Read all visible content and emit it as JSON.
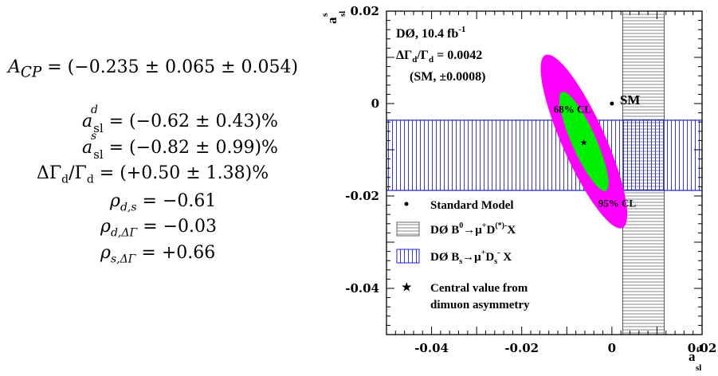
{
  "equations": [
    {
      "lhs": "A",
      "lhs_sub": "CP",
      "rhs": "= (−0.235 ± 0.065 ± 0.054)"
    },
    {
      "lhs": "a",
      "lhs_sup": "d",
      "lhs_sub": "sl",
      "rhs": "= (−0.62 ± 0.43)%"
    },
    {
      "lhs": "a",
      "lhs_sup": "s",
      "lhs_sub": "sl",
      "rhs": "= (−0.82 ± 0.99)%"
    },
    {
      "lhs": "ΔΓ",
      "lhs_sub": "d",
      "lhs_mid": "/Γ",
      "lhs_sub2": "d",
      "rhs": "= (+0.50 ± 1.38)%"
    },
    {
      "lhs": "ρ",
      "lhs_sub": "d,s",
      "rhs": "= −0.61"
    },
    {
      "lhs": "ρ",
      "lhs_sub": "d,ΔΓ",
      "rhs": "= −0.03"
    },
    {
      "lhs": "ρ",
      "lhs_sub": "s,ΔΓ",
      "rhs": "= +0.66"
    }
  ],
  "chart_data": {
    "type": "contour",
    "xlabel": "a",
    "xlabel_sup": "d",
    "xlabel_sub": "sl",
    "ylabel": "a",
    "ylabel_sup": "s",
    "ylabel_sub": "sl",
    "xlim": [
      -0.05,
      0.02
    ],
    "ylim": [
      -0.05,
      0.02
    ],
    "x_ticks": [
      -0.04,
      -0.02,
      0,
      0.02
    ],
    "x_tick_labels": [
      "-0.04",
      "-0.02",
      "0",
      "0.02"
    ],
    "y_ticks": [
      -0.04,
      -0.02,
      0,
      0.02
    ],
    "y_tick_labels": [
      "-0.04",
      "-0.02",
      "0",
      "0.02"
    ],
    "header": {
      "line1": "DØ, 10.4 fb",
      "line1_sup": "-1",
      "line2": "ΔΓ",
      "line2_sub": "d",
      "line2_mid": "/Γ",
      "line2_sub2": "d",
      "line2_val": " = 0.0042",
      "line3": "(SM, ±0.0008)"
    },
    "central_value": {
      "x": -0.0062,
      "y": -0.0082
    },
    "standard_model": {
      "x": 0.0,
      "y": 0.0,
      "label": "SM"
    },
    "ellipses": [
      {
        "label": "95% CL",
        "color": "#ff00ff",
        "cx": -0.0062,
        "cy": -0.0082,
        "a": 0.021,
        "b": 0.0048
      },
      {
        "label": "68% CL",
        "color": "#00ee00",
        "cx": -0.0062,
        "cy": -0.0082,
        "a": 0.012,
        "b": 0.0027
      }
    ],
    "bands": [
      {
        "name": "B0",
        "orientation": "vertical",
        "range": [
          0.0024,
          0.0116
        ],
        "color": "#555555"
      },
      {
        "name": "Bs",
        "orientation": "horizontal",
        "range": [
          -0.0188,
          -0.0036
        ],
        "color": "#2222cc"
      }
    ],
    "legend": {
      "placement": "lower-left",
      "items": [
        {
          "marker": "dot",
          "label": "Standard Model"
        },
        {
          "marker": "hbox",
          "label": "DØ B",
          "sup": "0",
          "label2": "→μ",
          "sup2": "+",
          "label3": "D",
          "sup3": "(*)-",
          "label4": "X"
        },
        {
          "marker": "vbox",
          "label": "DØ B",
          "sub": "s",
          "label2": "→μ",
          "sup2": "+",
          "label3": "D",
          "sub3": "s",
          "sup3": "-",
          "label4": " X"
        },
        {
          "marker": "star",
          "label": "Central value from",
          "label_line2": "dimuon asymmetry"
        }
      ]
    }
  }
}
